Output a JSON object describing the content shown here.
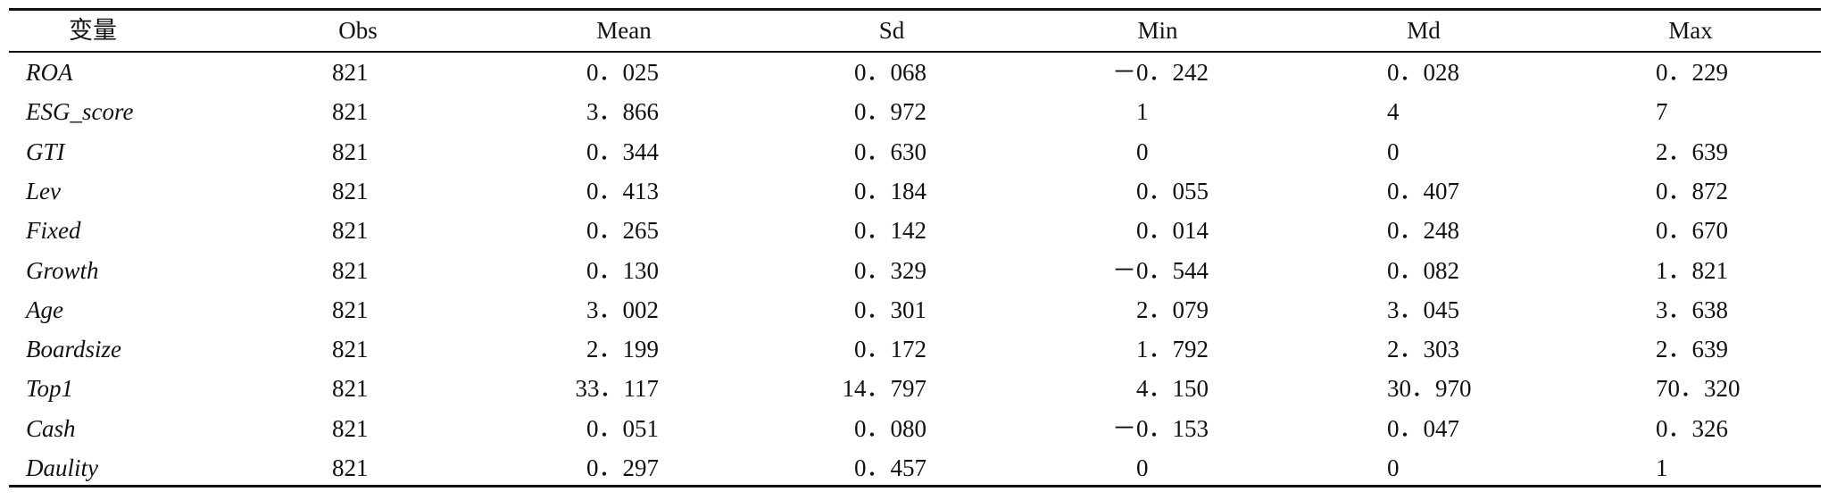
{
  "table": {
    "header": [
      "变量",
      "Obs",
      "Mean",
      "Sd",
      "Min",
      "Md",
      "Max"
    ],
    "rows": [
      [
        "ROA",
        "821",
        "0．025",
        "0．068",
        "－0．242",
        "0．028",
        "0．229"
      ],
      [
        "ESG_score",
        "821",
        "3．866",
        "0．972",
        "1",
        "4",
        "7"
      ],
      [
        "GTI",
        "821",
        "0．344",
        "0．630",
        "0",
        "0",
        "2．639"
      ],
      [
        "Lev",
        "821",
        "0．413",
        "0．184",
        "0．055",
        "0．407",
        "0．872"
      ],
      [
        "Fixed",
        "821",
        "0．265",
        "0．142",
        "0．014",
        "0．248",
        "0．670"
      ],
      [
        "Growth",
        "821",
        "0．130",
        "0．329",
        "－0．544",
        "0．082",
        "1．821"
      ],
      [
        "Age",
        "821",
        "3．002",
        "0．301",
        "2．079",
        "3．045",
        "3．638"
      ],
      [
        "Boardsize",
        "821",
        "2．199",
        "0．172",
        "1．792",
        "2．303",
        "2．639"
      ],
      [
        "Top1",
        "821",
        "33．117",
        "14．797",
        "4．150",
        "30．970",
        "70．320"
      ],
      [
        "Cash",
        "821",
        "0．051",
        "0．080",
        "－0．153",
        "0．047",
        "0．326"
      ],
      [
        "Daulity",
        "821",
        "0．297",
        "0．457",
        "0",
        "0",
        "1"
      ]
    ]
  }
}
